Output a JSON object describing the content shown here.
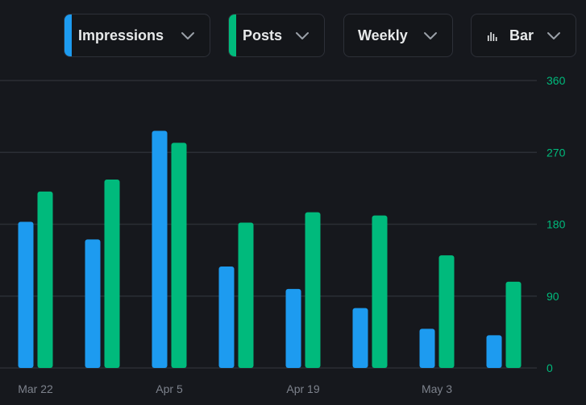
{
  "controls": {
    "metric1": {
      "label": "Impressions",
      "color": "#1d9bf0",
      "icon": "chevron-down-icon"
    },
    "metric2": {
      "label": "Posts",
      "color": "#00ba7c",
      "icon": "chevron-down-icon"
    },
    "period": {
      "label": "Weekly",
      "icon": "chevron-down-icon"
    },
    "chart_type": {
      "label": "Bar",
      "icon": "bar-chart-icon"
    }
  },
  "colors": {
    "background": "#16181d",
    "grid": "#2b2e35",
    "impressions": "#1d9bf0",
    "posts": "#00ba7c",
    "x_tick_text": "#7d828c",
    "y_tick_text": "#00ba7c"
  },
  "chart_data": {
    "type": "bar",
    "categories": [
      "Mar 22",
      "",
      "Apr 5",
      "",
      "Apr 19",
      "",
      "May 3",
      ""
    ],
    "x_tick_labels": [
      "Mar 22",
      "Apr 5",
      "Apr 19",
      "May 3"
    ],
    "y_ticks": [
      0,
      90,
      180,
      270,
      360
    ],
    "ylim": [
      0,
      360
    ],
    "y_axis_side": "right",
    "grid": true,
    "series": [
      {
        "name": "Impressions",
        "values": [
          183,
          161,
          297,
          127,
          99,
          75,
          49,
          41
        ]
      },
      {
        "name": "Posts",
        "values": [
          221,
          236,
          282,
          182,
          195,
          191,
          141,
          108
        ]
      }
    ]
  }
}
